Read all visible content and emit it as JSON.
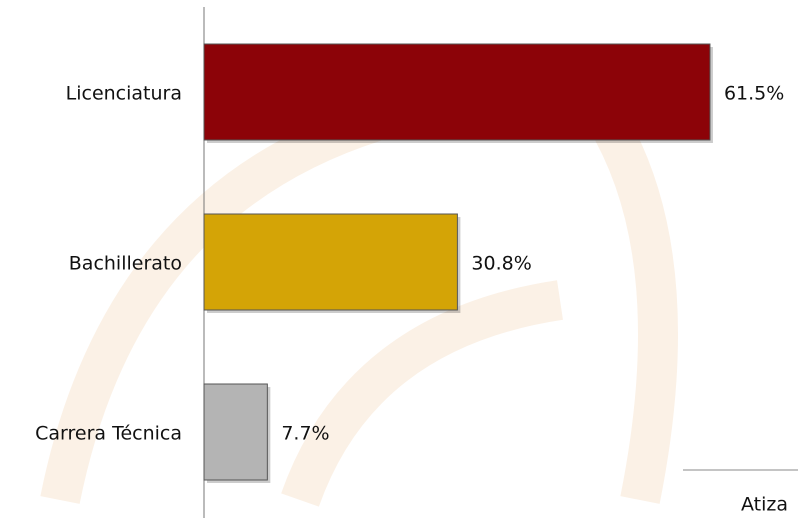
{
  "chart_data": {
    "type": "bar",
    "orientation": "horizontal",
    "categories": [
      "Licenciatura",
      "Bachillerato",
      "Carrera Técnica"
    ],
    "values": [
      61.5,
      30.8,
      7.7
    ],
    "value_labels": [
      "61.5%",
      "30.8%",
      "7.7%"
    ],
    "colors": [
      "#8c0308",
      "#d4a406",
      "#b4b4b4"
    ],
    "xlim": [
      0,
      72.2
    ],
    "annotation": "Atiza"
  }
}
